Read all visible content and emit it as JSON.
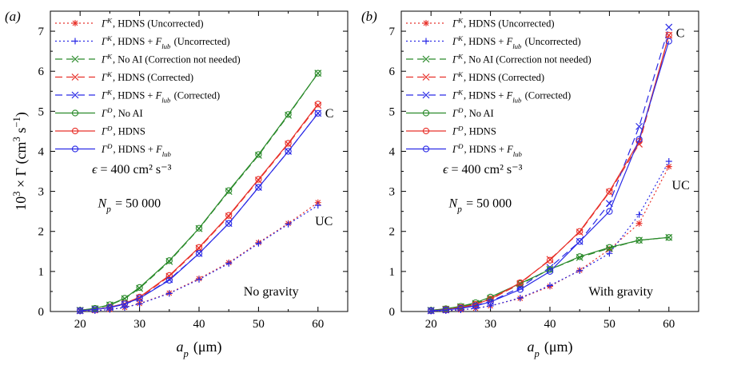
{
  "colors": {
    "uncorrected_hdns": "#e8312a",
    "uncorrected_flub": "#2a2ae6",
    "no_ai": "#2a8a2a",
    "corrected_hdns": "#e8312a",
    "corrected_flub": "#2a2ae6",
    "text": "#000000"
  },
  "chart_data": [
    {
      "type": "line",
      "panel_label": "(a)",
      "xlabel": "a_p (μm)",
      "ylabel": "10^3 × Γ (cm^3 s^-1)",
      "xlim": [
        15,
        65
      ],
      "ylim": [
        0,
        7.5
      ],
      "xticks": [
        20,
        30,
        40,
        50,
        60
      ],
      "yticks": [
        0,
        1,
        2,
        3,
        4,
        5,
        6,
        7
      ],
      "grid": false,
      "legend_position": "top-left",
      "annotations": [
        {
          "text": "ϵ = 400 cm² s⁻³",
          "x": 22,
          "y": 3.45
        },
        {
          "text": "N_p = 50 000",
          "x": 23,
          "y": 2.6
        },
        {
          "text": "C",
          "x": 61.2,
          "y": 4.85
        },
        {
          "text": "UC",
          "x": 59.5,
          "y": 2.15
        },
        {
          "text": "No gravity",
          "x": 47.5,
          "y": 0.4
        }
      ],
      "x": [
        20,
        22.5,
        25,
        27.5,
        30,
        35,
        40,
        45,
        50,
        55,
        60
      ],
      "series": [
        {
          "name": "Γ^K, HDNS (Uncorrected)",
          "style": "dotted",
          "marker": "asterisk",
          "color": "#e8312a",
          "values": [
            0.01,
            0.02,
            0.05,
            0.1,
            0.2,
            0.46,
            0.82,
            1.22,
            1.72,
            2.2,
            2.72
          ]
        },
        {
          "name": "Γ^K, HDNS + F_lub (Uncorrected)",
          "style": "dotted",
          "marker": "plus",
          "color": "#2a2ae6",
          "values": [
            0.01,
            0.02,
            0.05,
            0.1,
            0.19,
            0.45,
            0.8,
            1.2,
            1.7,
            2.18,
            2.65
          ]
        },
        {
          "name": "Γ^K, No AI (Correction not needed)",
          "style": "dashed",
          "marker": "x",
          "color": "#2a8a2a",
          "values": [
            0.03,
            0.07,
            0.16,
            0.32,
            0.58,
            1.25,
            2.07,
            3.0,
            3.9,
            4.9,
            5.95
          ]
        },
        {
          "name": "Γ^K, HDNS (Corrected)",
          "style": "dashed",
          "marker": "x",
          "color": "#e8312a",
          "values": [
            0.02,
            0.05,
            0.1,
            0.19,
            0.34,
            0.88,
            1.58,
            2.38,
            3.28,
            4.18,
            5.15
          ]
        },
        {
          "name": "Γ^K, HDNS + F_lub (Corrected)",
          "style": "dashed",
          "marker": "x",
          "color": "#2a2ae6",
          "values": [
            0.02,
            0.05,
            0.1,
            0.18,
            0.33,
            0.8,
            1.45,
            2.2,
            3.1,
            4.0,
            4.95
          ]
        },
        {
          "name": "Γ^D, No AI",
          "style": "solid",
          "marker": "circle",
          "color": "#2a8a2a",
          "values": [
            0.03,
            0.08,
            0.17,
            0.33,
            0.6,
            1.27,
            2.08,
            3.02,
            3.92,
            4.92,
            5.95
          ]
        },
        {
          "name": "Γ^D, HDNS",
          "style": "solid",
          "marker": "circle",
          "color": "#e8312a",
          "values": [
            0.02,
            0.05,
            0.11,
            0.2,
            0.36,
            0.9,
            1.6,
            2.4,
            3.3,
            4.2,
            5.18
          ]
        },
        {
          "name": "Γ^D, HDNS + F_lub",
          "style": "solid",
          "marker": "circle",
          "color": "#2a2ae6",
          "values": [
            0.02,
            0.05,
            0.1,
            0.19,
            0.33,
            0.78,
            1.45,
            2.2,
            3.1,
            4.0,
            4.95
          ]
        }
      ]
    },
    {
      "type": "line",
      "panel_label": "(b)",
      "xlabel": "a_p (μm)",
      "ylabel": "",
      "xlim": [
        15,
        65
      ],
      "ylim": [
        0,
        7.5
      ],
      "xticks": [
        20,
        30,
        40,
        50,
        60
      ],
      "yticks": [
        0,
        1,
        2,
        3,
        4,
        5,
        6,
        7
      ],
      "grid": false,
      "legend_position": "top-left",
      "annotations": [
        {
          "text": "ϵ = 400 cm² s⁻³",
          "x": 22,
          "y": 3.45
        },
        {
          "text": "N_p = 50 000",
          "x": 23,
          "y": 2.6
        },
        {
          "text": "C",
          "x": 61.2,
          "y": 6.85
        },
        {
          "text": "UC",
          "x": 60.5,
          "y": 3.05
        },
        {
          "text": "With gravity",
          "x": 46.5,
          "y": 0.4
        }
      ],
      "x": [
        20,
        22.5,
        25,
        27.5,
        30,
        35,
        40,
        45,
        50,
        55,
        60
      ],
      "series": [
        {
          "name": "Γ^K, HDNS (Uncorrected)",
          "style": "dotted",
          "marker": "asterisk",
          "color": "#e8312a",
          "values": [
            0.01,
            0.02,
            0.04,
            0.08,
            0.14,
            0.33,
            0.63,
            1.03,
            1.55,
            2.2,
            3.62
          ]
        },
        {
          "name": "Γ^K, HDNS + F_lub (Uncorrected)",
          "style": "dotted",
          "marker": "plus",
          "color": "#2a2ae6",
          "values": [
            0.01,
            0.02,
            0.04,
            0.08,
            0.14,
            0.34,
            0.65,
            1.02,
            1.45,
            2.42,
            3.75
          ]
        },
        {
          "name": "Γ^K, No AI (Correction not needed)",
          "style": "dashed",
          "marker": "x",
          "color": "#2a8a2a",
          "values": [
            0.03,
            0.06,
            0.12,
            0.2,
            0.33,
            0.68,
            1.05,
            1.35,
            1.58,
            1.78,
            1.85
          ]
        },
        {
          "name": "Γ^K, HDNS (Corrected)",
          "style": "dashed",
          "marker": "x",
          "color": "#e8312a",
          "values": [
            0.02,
            0.05,
            0.1,
            0.18,
            0.3,
            0.7,
            1.3,
            1.98,
            2.98,
            4.18,
            6.9
          ]
        },
        {
          "name": "Γ^K, HDNS + F_lub (Corrected)",
          "style": "dashed",
          "marker": "x",
          "color": "#2a2ae6",
          "values": [
            0.02,
            0.04,
            0.08,
            0.15,
            0.25,
            0.6,
            1.1,
            1.75,
            2.7,
            4.62,
            7.1
          ]
        },
        {
          "name": "Γ^D, No AI",
          "style": "solid",
          "marker": "circle",
          "color": "#2a8a2a",
          "values": [
            0.03,
            0.07,
            0.13,
            0.22,
            0.36,
            0.7,
            1.05,
            1.37,
            1.6,
            1.78,
            1.85
          ]
        },
        {
          "name": "Γ^D, HDNS",
          "style": "solid",
          "marker": "circle",
          "color": "#e8312a",
          "values": [
            0.02,
            0.05,
            0.1,
            0.18,
            0.31,
            0.72,
            1.28,
            2.0,
            3.0,
            4.25,
            6.9
          ]
        },
        {
          "name": "Γ^D, HDNS + F_lub",
          "style": "solid",
          "marker": "circle",
          "color": "#2a2ae6",
          "values": [
            0.02,
            0.04,
            0.08,
            0.14,
            0.24,
            0.55,
            1.0,
            1.75,
            2.5,
            4.3,
            6.75
          ]
        }
      ]
    }
  ]
}
